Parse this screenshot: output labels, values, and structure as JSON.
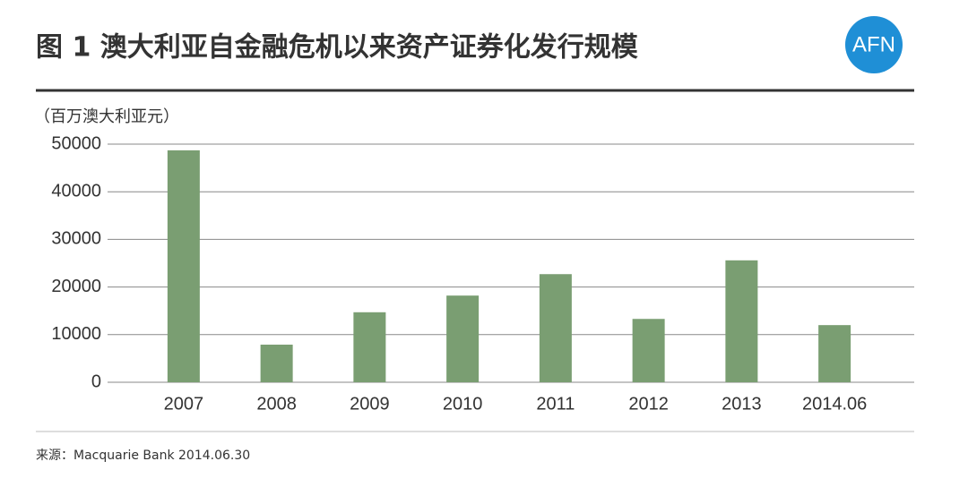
{
  "chart_data": {
    "type": "bar",
    "title": "图 1 澳大利亚自金融危机以来资产证券化发行规模",
    "logo": "AFN",
    "y_label": "（百万澳大利亚元）",
    "source": "来源：Macquarie Bank 2014.06.30",
    "categories": [
      "2007",
      "2008",
      "2009",
      "2010",
      "2011",
      "2012",
      "2013",
      "2014.06"
    ],
    "values": [
      48700,
      7900,
      14700,
      18200,
      22700,
      13300,
      25600,
      12000
    ],
    "color": "#7a9e72",
    "ylim": [
      0,
      50000
    ],
    "yticks": [
      0,
      10000,
      20000,
      30000,
      40000,
      50000
    ],
    "grid": true
  }
}
